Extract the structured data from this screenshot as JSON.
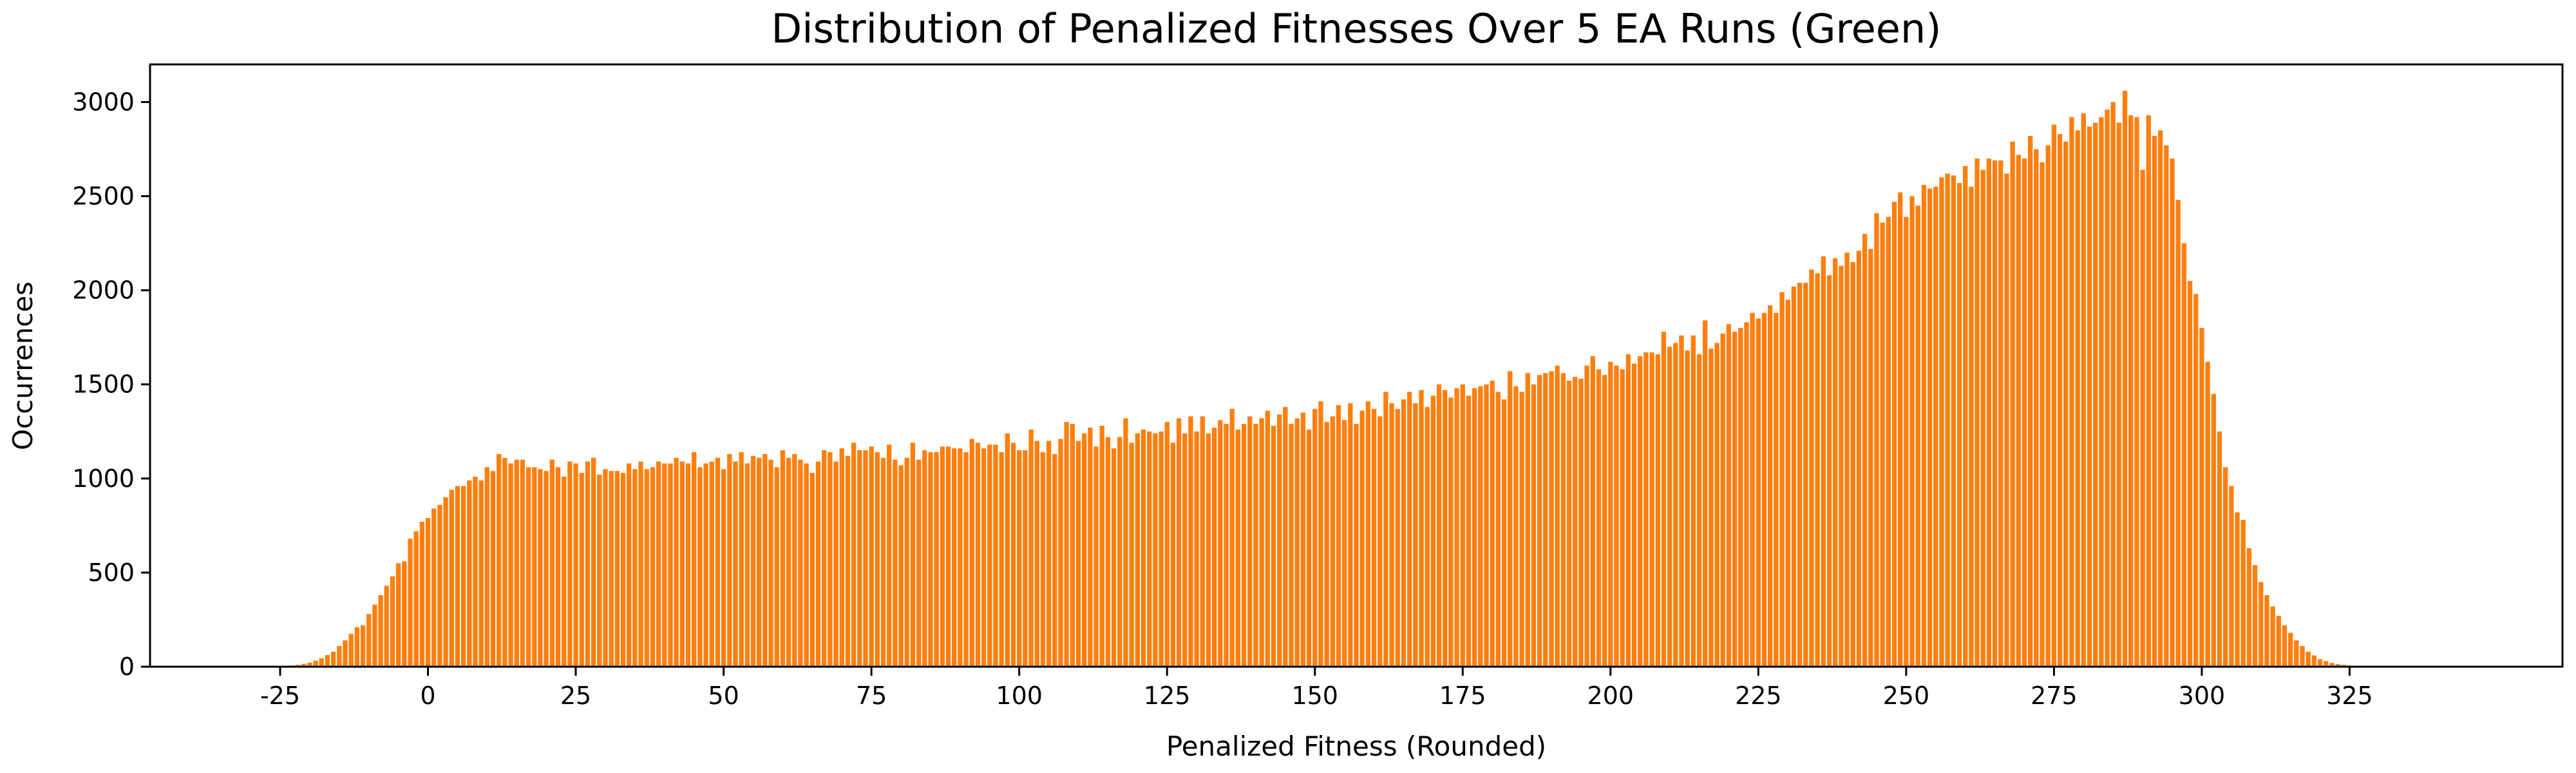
{
  "chart_data": {
    "type": "bar",
    "title": "Distribution of Penalized Fitnesses Over 5 EA Runs (Green)",
    "xlabel": "Penalized Fitness (Rounded)",
    "ylabel": "Occurrences",
    "xlim": [
      -47,
      361
    ],
    "ylim": [
      0,
      3200
    ],
    "x_ticks": [
      -25,
      0,
      25,
      50,
      75,
      100,
      125,
      150,
      175,
      200,
      225,
      250,
      275,
      300,
      325
    ],
    "y_ticks": [
      0,
      500,
      1000,
      1500,
      2000,
      2500,
      3000
    ],
    "grid": false,
    "bar_color": "#ff7f0e",
    "x_start": -26,
    "bin_width": 1,
    "series": [
      {
        "values": [
          1,
          2,
          4,
          6,
          10,
          15,
          22,
          32,
          45,
          62,
          80,
          110,
          140,
          175,
          210,
          220,
          280,
          330,
          380,
          430,
          480,
          550,
          560,
          680,
          720,
          770,
          790,
          840,
          860,
          900,
          940,
          960,
          960,
          990,
          1010,
          990,
          1060,
          1040,
          1130,
          1110,
          1080,
          1100,
          1100,
          1060,
          1060,
          1050,
          1040,
          1100,
          1060,
          1010,
          1090,
          1080,
          1030,
          1090,
          1110,
          1020,
          1050,
          1040,
          1040,
          1030,
          1080,
          1050,
          1090,
          1050,
          1060,
          1090,
          1080,
          1080,
          1110,
          1090,
          1080,
          1140,
          1060,
          1080,
          1090,
          1110,
          1050,
          1130,
          1090,
          1140,
          1080,
          1120,
          1110,
          1130,
          1100,
          1060,
          1150,
          1110,
          1130,
          1100,
          1080,
          1030,
          1090,
          1150,
          1140,
          1090,
          1160,
          1120,
          1190,
          1150,
          1150,
          1170,
          1140,
          1110,
          1180,
          1100,
          1070,
          1110,
          1190,
          1100,
          1150,
          1140,
          1140,
          1170,
          1170,
          1160,
          1160,
          1140,
          1210,
          1190,
          1160,
          1180,
          1180,
          1140,
          1240,
          1190,
          1150,
          1150,
          1260,
          1200,
          1140,
          1200,
          1130,
          1210,
          1300,
          1290,
          1200,
          1240,
          1270,
          1170,
          1280,
          1220,
          1160,
          1220,
          1320,
          1190,
          1240,
          1260,
          1250,
          1240,
          1250,
          1300,
          1190,
          1320,
          1240,
          1330,
          1250,
          1330,
          1240,
          1270,
          1310,
          1290,
          1370,
          1260,
          1290,
          1330,
          1290,
          1320,
          1360,
          1280,
          1340,
          1380,
          1290,
          1320,
          1350,
          1260,
          1370,
          1410,
          1300,
          1330,
          1390,
          1310,
          1400,
          1290,
          1360,
          1410,
          1370,
          1330,
          1460,
          1400,
          1370,
          1420,
          1460,
          1400,
          1470,
          1380,
          1440,
          1500,
          1470,
          1430,
          1480,
          1500,
          1440,
          1480,
          1490,
          1500,
          1520,
          1460,
          1420,
          1570,
          1490,
          1460,
          1560,
          1500,
          1550,
          1560,
          1570,
          1600,
          1560,
          1520,
          1540,
          1530,
          1600,
          1650,
          1580,
          1550,
          1620,
          1600,
          1580,
          1660,
          1610,
          1650,
          1670,
          1670,
          1660,
          1780,
          1700,
          1720,
          1760,
          1680,
          1760,
          1660,
          1840,
          1690,
          1720,
          1770,
          1820,
          1780,
          1800,
          1830,
          1880,
          1850,
          1880,
          1920,
          1880,
          1990,
          1950,
          2020,
          2040,
          2040,
          2110,
          2090,
          2180,
          2080,
          2170,
          2130,
          2200,
          2150,
          2210,
          2300,
          2220,
          2410,
          2360,
          2390,
          2470,
          2520,
          2390,
          2500,
          2450,
          2560,
          2540,
          2550,
          2600,
          2620,
          2610,
          2570,
          2660,
          2550,
          2700,
          2640,
          2700,
          2690,
          2690,
          2620,
          2790,
          2720,
          2700,
          2820,
          2750,
          2680,
          2770,
          2880,
          2830,
          2790,
          2920,
          2850,
          2940,
          2870,
          2890,
          2920,
          2960,
          3000,
          2890,
          3060,
          2930,
          2920,
          2640,
          2930,
          2820,
          2850,
          2770,
          2700,
          2480,
          2250,
          2050,
          1980,
          1800,
          1620,
          1450,
          1250,
          1060,
          960,
          820,
          780,
          630,
          540,
          450,
          380,
          320,
          270,
          220,
          180,
          140,
          110,
          80,
          60,
          40,
          30,
          20,
          14,
          10,
          6,
          4,
          2,
          1
        ]
      }
    ]
  }
}
